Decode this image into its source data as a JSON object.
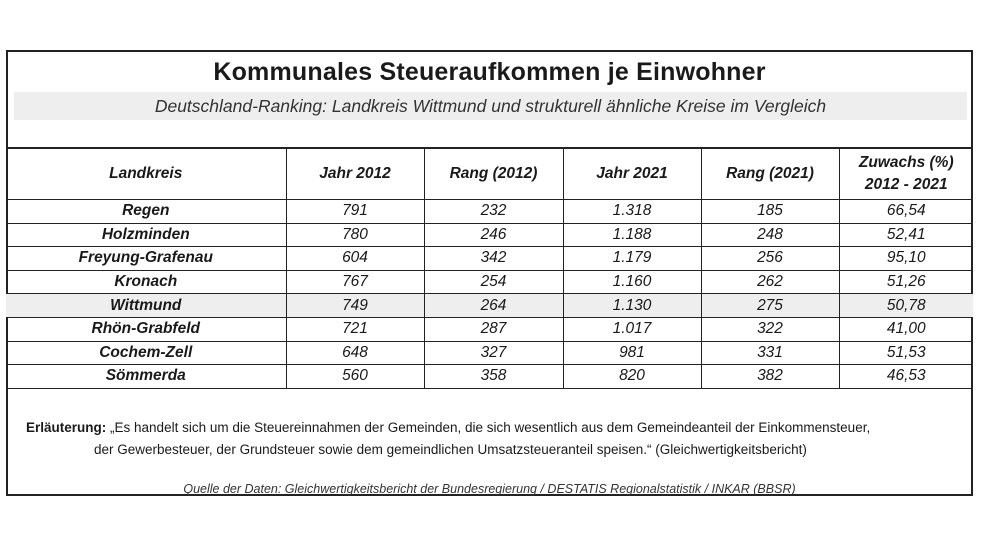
{
  "title": "Kommunales Steueraufkommen je Einwohner",
  "subtitle": "Deutschland-Ranking: Landkreis Wittmund und strukturell ähnliche Kreise im Vergleich",
  "table": {
    "headers": [
      "Landkreis",
      "Jahr 2012",
      "Rang (2012)",
      "Jahr 2021",
      "Rang (2021)",
      "Zuwachs (%)",
      "2012 - 2021"
    ],
    "rows": [
      [
        "Regen",
        "791",
        "232",
        "1.318",
        "185",
        "66,54"
      ],
      [
        "Holzminden",
        "780",
        "246",
        "1.188",
        "248",
        "52,41"
      ],
      [
        "Freyung-Grafenau",
        "604",
        "342",
        "1.179",
        "256",
        "95,10"
      ],
      [
        "Kronach",
        "767",
        "254",
        "1.160",
        "262",
        "51,26"
      ],
      [
        "Wittmund",
        "749",
        "264",
        "1.130",
        "275",
        "50,78"
      ],
      [
        "Rhön-Grabfeld",
        "721",
        "287",
        "1.017",
        "322",
        "41,00"
      ],
      [
        "Cochem-Zell",
        "648",
        "327",
        "981",
        "331",
        "51,53"
      ],
      [
        "Sömmerda",
        "560",
        "358",
        "820",
        "382",
        "46,53"
      ]
    ],
    "highlight_row": "Wittmund",
    "highlight_color": "#eeeeee"
  },
  "note": {
    "label": "Erläuterung:",
    "line1": "„Es handelt sich um die Steuereinnahmen der Gemeinden, die sich wesentlich aus dem Gemeindeanteil der Einkommensteuer,",
    "line2": "der Gewerbesteuer, der Grundsteuer sowie dem gemeindlichen Umsatzsteueranteil speisen.“ (Gleichwertigkeitsbericht)"
  },
  "source": "Quelle der Daten: Gleichwertigkeitsbericht der Bundesregierung / DESTATIS Regionalstatistik / INKAR (BBSR)"
}
